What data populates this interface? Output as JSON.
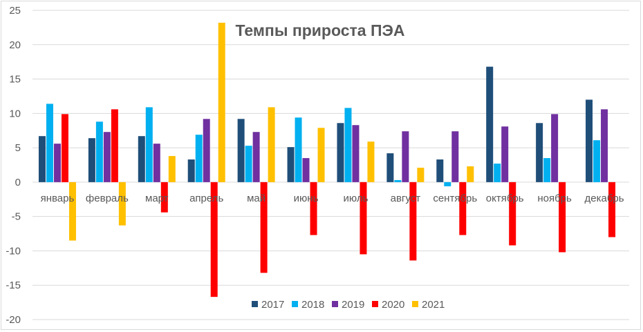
{
  "chart_data": {
    "type": "bar",
    "title": "Темпы прироста ПЭА",
    "xlabel": "",
    "ylabel": "",
    "ylim": [
      -20,
      25
    ],
    "yticks": [
      25,
      20,
      15,
      10,
      5,
      0,
      -5,
      -10,
      -15,
      -20
    ],
    "grid": true,
    "legend_position": "bottom",
    "categories": [
      "январь",
      "февраль",
      "март",
      "апрель",
      "май",
      "июнь",
      "июль",
      "август",
      "сентябрь",
      "октябрь",
      "ноябрь",
      "декабрь"
    ],
    "series": [
      {
        "name": "2017",
        "color": "#1f4e79",
        "values": [
          6.7,
          6.4,
          6.7,
          3.3,
          9.2,
          5.1,
          8.6,
          4.2,
          3.3,
          16.8,
          8.6,
          12.0
        ]
      },
      {
        "name": "2018",
        "color": "#00b0f0",
        "values": [
          11.4,
          8.8,
          10.9,
          6.9,
          5.3,
          9.4,
          10.8,
          0.3,
          -0.6,
          2.7,
          3.5,
          6.1
        ]
      },
      {
        "name": "2019",
        "color": "#7030a0",
        "values": [
          5.6,
          7.3,
          5.6,
          9.2,
          7.3,
          3.5,
          8.3,
          7.4,
          7.4,
          8.1,
          9.9,
          10.6
        ]
      },
      {
        "name": "2020",
        "color": "#ff0000",
        "values": [
          9.9,
          10.6,
          -4.4,
          -16.7,
          -13.2,
          -7.7,
          -10.5,
          -11.4,
          -7.7,
          -9.2,
          -10.2,
          -8.0
        ]
      },
      {
        "name": "2021",
        "color": "#ffc000",
        "values": [
          -8.5,
          -6.3,
          3.8,
          23.2,
          10.9,
          7.9,
          5.9,
          2.1,
          2.3,
          null,
          null,
          null
        ]
      }
    ]
  }
}
